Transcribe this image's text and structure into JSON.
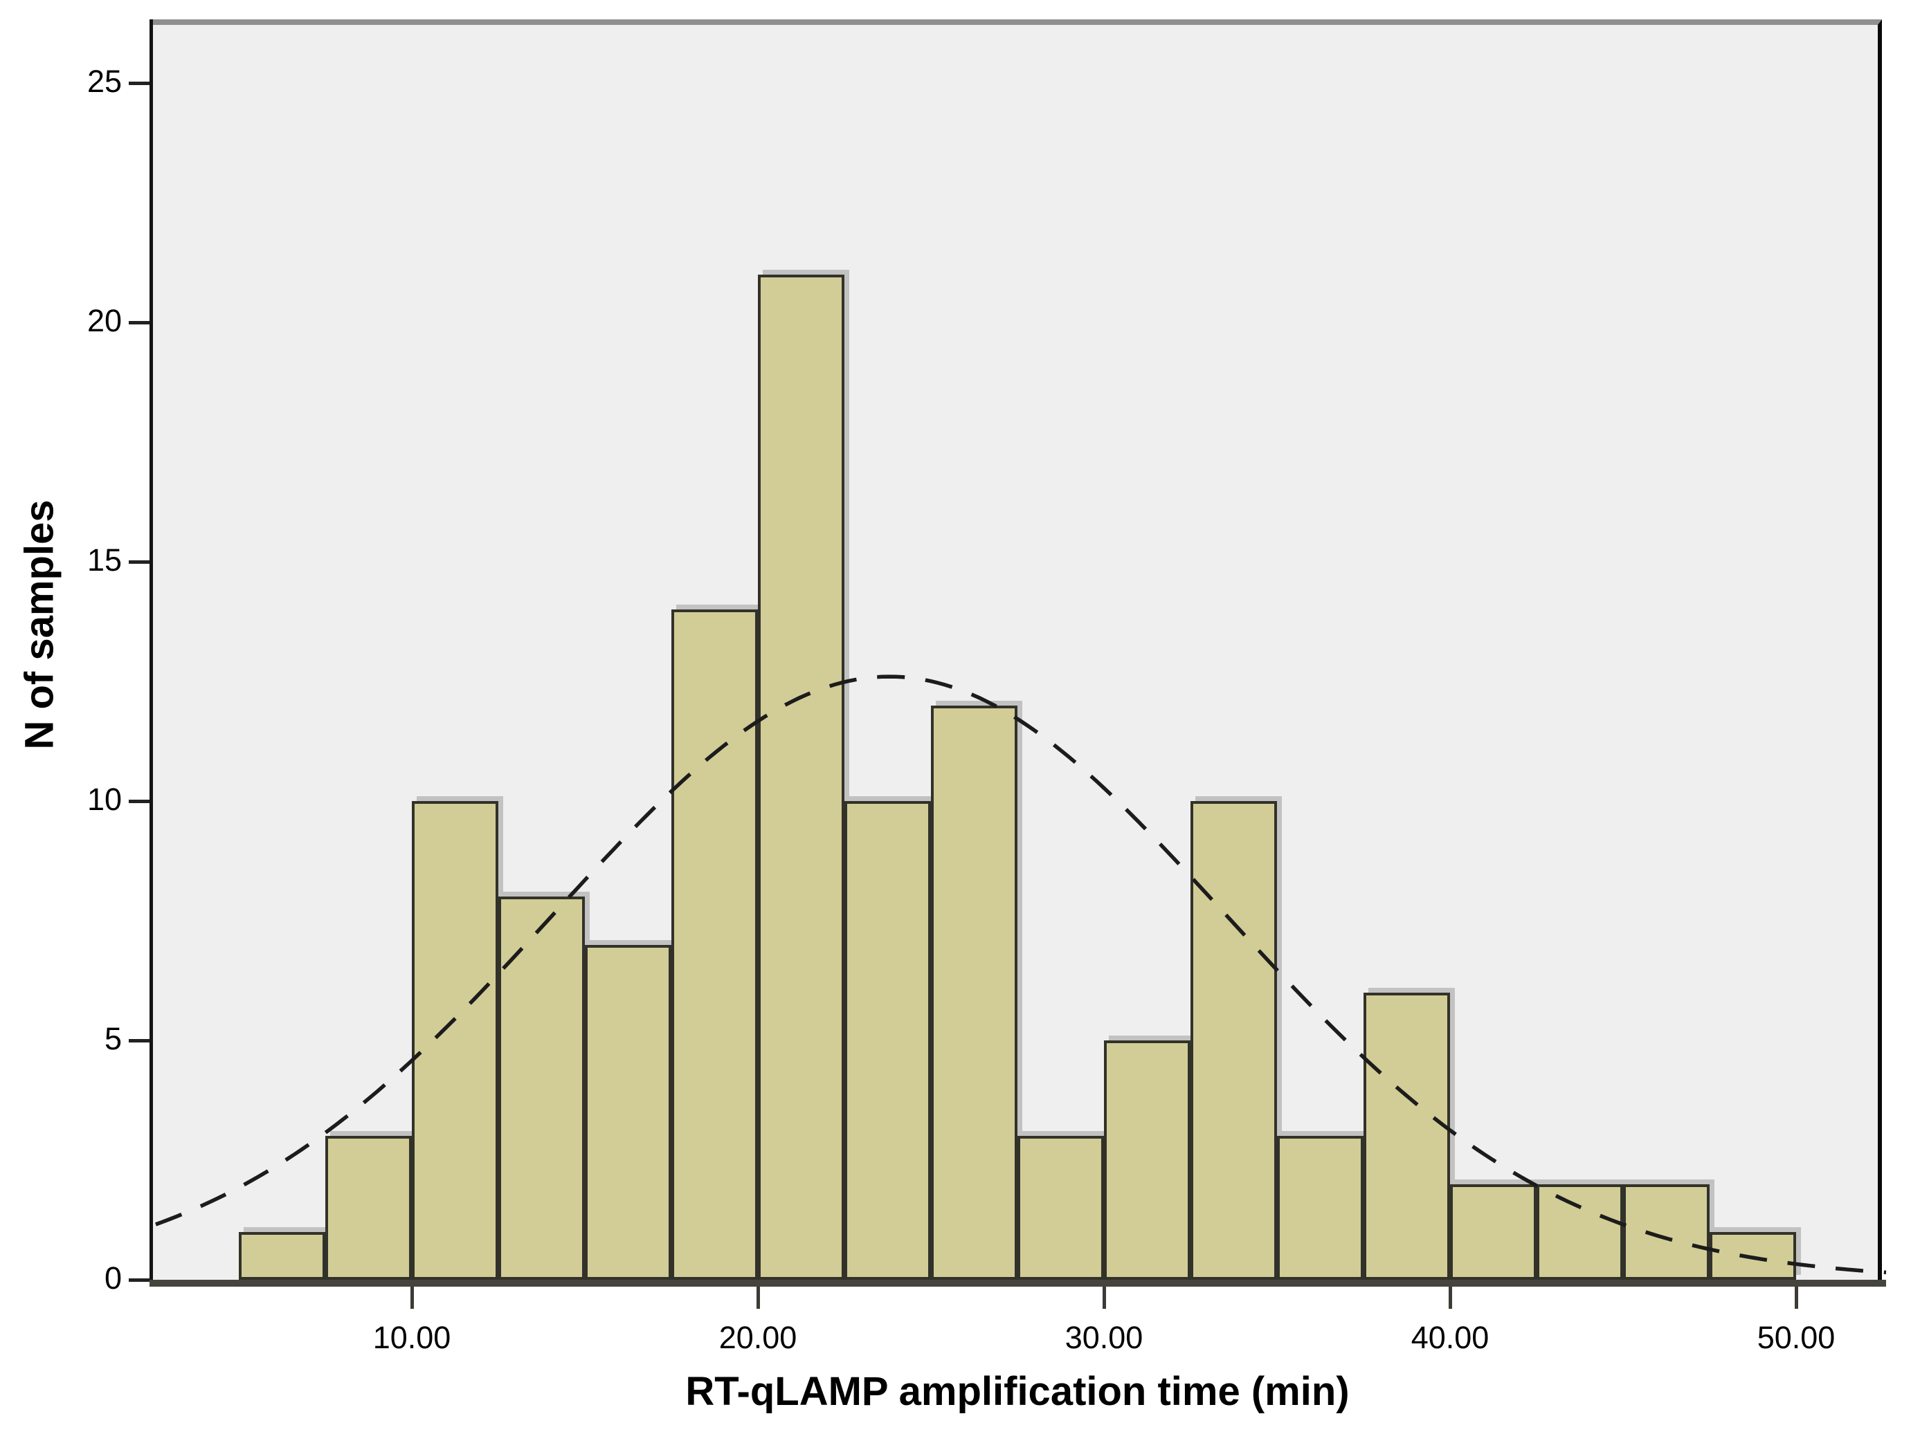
{
  "chart_data": {
    "type": "bar",
    "subtype": "histogram",
    "title": "",
    "xlabel": "RT-qLAMP amplification time (min)",
    "ylabel": "N of samples",
    "bin_width": 2.5,
    "bins": [
      {
        "from": 5.0,
        "to": 7.5,
        "count": 1
      },
      {
        "from": 7.5,
        "to": 10.0,
        "count": 3
      },
      {
        "from": 10.0,
        "to": 12.5,
        "count": 10
      },
      {
        "from": 12.5,
        "to": 15.0,
        "count": 8
      },
      {
        "from": 15.0,
        "to": 17.5,
        "count": 7
      },
      {
        "from": 17.5,
        "to": 20.0,
        "count": 14
      },
      {
        "from": 20.0,
        "to": 22.5,
        "count": 21
      },
      {
        "from": 22.5,
        "to": 25.0,
        "count": 10
      },
      {
        "from": 25.0,
        "to": 27.5,
        "count": 12
      },
      {
        "from": 27.5,
        "to": 30.0,
        "count": 3
      },
      {
        "from": 30.0,
        "to": 32.5,
        "count": 5
      },
      {
        "from": 32.5,
        "to": 35.0,
        "count": 10
      },
      {
        "from": 35.0,
        "to": 37.5,
        "count": 3
      },
      {
        "from": 37.5,
        "to": 40.0,
        "count": 6
      },
      {
        "from": 40.0,
        "to": 42.5,
        "count": 2
      },
      {
        "from": 42.5,
        "to": 45.0,
        "count": 2
      },
      {
        "from": 45.0,
        "to": 47.5,
        "count": 2
      },
      {
        "from": 47.5,
        "to": 50.0,
        "count": 1
      }
    ],
    "x_ticks": [
      {
        "value": 10,
        "label": "10.00"
      },
      {
        "value": 20,
        "label": "20.00"
      },
      {
        "value": 30,
        "label": "30.00"
      },
      {
        "value": 40,
        "label": "40.00"
      },
      {
        "value": 50,
        "label": "50.00"
      }
    ],
    "y_ticks": [
      {
        "value": 0,
        "label": "0"
      },
      {
        "value": 5,
        "label": "5"
      },
      {
        "value": 10,
        "label": "10"
      },
      {
        "value": 15,
        "label": "15"
      },
      {
        "value": 20,
        "label": "20"
      },
      {
        "value": 25,
        "label": "25"
      }
    ],
    "xlim": [
      2.6,
      52.7
    ],
    "ylim": [
      0,
      26.3
    ],
    "grid": false,
    "legend": false,
    "normal_curve": {
      "style": "dashed",
      "peak_height": 12.6,
      "mean": 23.8,
      "sd": 9.7
    },
    "colors": {
      "bar_fill": "#d2cd96",
      "bar_border": "#32322a",
      "bar_shadow": "#c2c2c2",
      "plot_background": "#efefef",
      "page_background": "#ffffff",
      "curve": "#1c1c1c",
      "axis_bottom": "#45453d",
      "axis_left": "#141414",
      "border_top": "#8f8f8f",
      "border_right": "#0a0a0a",
      "text": "#000000"
    }
  }
}
